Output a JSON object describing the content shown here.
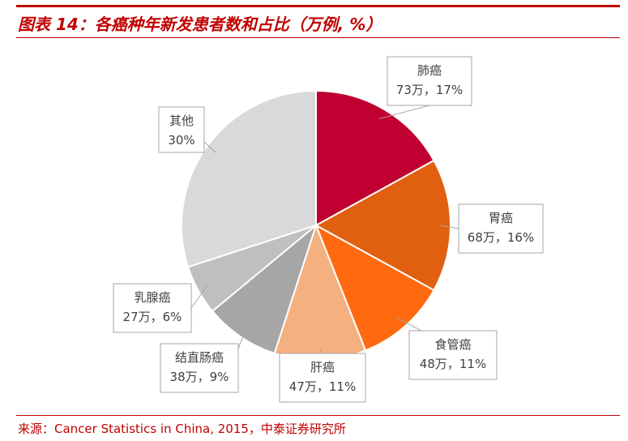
{
  "header": {
    "title": "图表 14：各癌种年新发患者数和占比（万例, %）"
  },
  "footer": {
    "source": "来源：Cancer Statistics in China, 2015，中泰证券研究所"
  },
  "chart_data": {
    "type": "pie",
    "title": "图表 14：各癌种年新发患者数和占比（万例, %）",
    "unit_count": "万",
    "slices": [
      {
        "name": "肺癌",
        "count": 73,
        "percent": 17,
        "value_label": "73万，17%",
        "color": "#c00030"
      },
      {
        "name": "胃癌",
        "count": 68,
        "percent": 16,
        "value_label": "68万，16%",
        "color": "#e06010"
      },
      {
        "name": "食管癌",
        "count": 48,
        "percent": 11,
        "value_label": "48万，11%",
        "color": "#ff6a10"
      },
      {
        "name": "肝癌",
        "count": 47,
        "percent": 11,
        "value_label": "47万，11%",
        "color": "#f5b080"
      },
      {
        "name": "结直肠癌",
        "count": 38,
        "percent": 9,
        "value_label": "38万，9%",
        "color": "#a6a6a6"
      },
      {
        "name": "乳腺癌",
        "count": 27,
        "percent": 6,
        "value_label": "27万，6%",
        "color": "#bfbfbf"
      },
      {
        "name": "其他",
        "count": null,
        "percent": 30,
        "value_label": "30%",
        "color": "#d9d9d9"
      }
    ]
  }
}
